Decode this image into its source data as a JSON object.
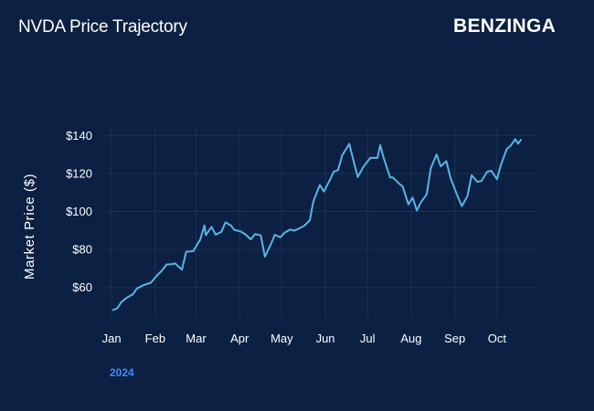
{
  "header": {
    "title": "NVDA Price Trajectory",
    "brand": "BENZINGA"
  },
  "colors": {
    "background": "#0b2042",
    "line": "#5ab4e8",
    "grid": "#1d3256",
    "year_label": "#3f8cff"
  },
  "chart_data": {
    "type": "line",
    "title": "NVDA Price Trajectory",
    "xlabel": "",
    "ylabel": "Market Price ($)",
    "x_ticks": [
      "Jan",
      "Feb",
      "Mar",
      "Apr",
      "May",
      "Jun",
      "Jul",
      "Aug",
      "Sep",
      "Oct"
    ],
    "x_year_label": "2024",
    "y_ticks": [
      "$60",
      "$80",
      "$100",
      "$120",
      "$140"
    ],
    "y_tick_values": [
      60,
      80,
      100,
      120,
      140
    ],
    "xlim": [
      "2023-12-28",
      "2024-10-31"
    ],
    "ylim": [
      44,
      144
    ],
    "grid": true,
    "legend": "none",
    "series": [
      {
        "x": [
          "2024-01-02",
          "2024-01-05",
          "2024-01-08",
          "2024-01-12",
          "2024-01-16",
          "2024-01-19",
          "2024-01-24",
          "2024-01-29",
          "2024-02-02",
          "2024-02-06",
          "2024-02-09",
          "2024-02-13",
          "2024-02-15",
          "2024-02-20",
          "2024-02-23",
          "2024-02-28",
          "2024-03-04",
          "2024-03-07",
          "2024-03-08",
          "2024-03-12",
          "2024-03-15",
          "2024-03-19",
          "2024-03-22",
          "2024-03-26",
          "2024-03-28",
          "2024-04-02",
          "2024-04-05",
          "2024-04-09",
          "2024-04-12",
          "2024-04-16",
          "2024-04-19",
          "2024-04-23",
          "2024-04-26",
          "2024-04-30",
          "2024-05-03",
          "2024-05-07",
          "2024-05-10",
          "2024-05-14",
          "2024-05-17",
          "2024-05-21",
          "2024-05-23",
          "2024-05-24",
          "2024-05-28",
          "2024-05-31",
          "2024-06-04",
          "2024-06-07",
          "2024-06-10",
          "2024-06-13",
          "2024-06-18",
          "2024-06-21",
          "2024-06-24",
          "2024-06-28",
          "2024-07-03",
          "2024-07-08",
          "2024-07-10",
          "2024-07-12",
          "2024-07-17",
          "2024-07-19",
          "2024-07-24",
          "2024-07-26",
          "2024-07-30",
          "2024-08-02",
          "2024-08-05",
          "2024-08-08",
          "2024-08-12",
          "2024-08-15",
          "2024-08-19",
          "2024-08-22",
          "2024-08-26",
          "2024-08-29",
          "2024-09-03",
          "2024-09-06",
          "2024-09-10",
          "2024-09-13",
          "2024-09-17",
          "2024-09-20",
          "2024-09-24",
          "2024-09-27",
          "2024-10-01",
          "2024-10-04",
          "2024-10-08",
          "2024-10-11",
          "2024-10-14",
          "2024-10-16",
          "2024-10-18"
        ],
        "values": [
          48.1,
          49.0,
          52.3,
          54.7,
          56.3,
          59.5,
          61.3,
          62.5,
          66.1,
          69.1,
          72.1,
          72.2,
          72.7,
          69.4,
          78.8,
          79.1,
          85.2,
          92.6,
          87.5,
          91.9,
          87.8,
          89.3,
          94.3,
          92.5,
          90.4,
          89.4,
          88.0,
          85.3,
          88.1,
          87.4,
          76.2,
          82.4,
          87.7,
          86.4,
          88.8,
          90.5,
          89.9,
          91.3,
          92.5,
          95.4,
          103.8,
          106.5,
          113.9,
          110.5,
          116.4,
          120.9,
          121.8,
          129.6,
          135.6,
          126.6,
          118.1,
          123.5,
          128.3,
          128.2,
          134.9,
          129.2,
          117.9,
          117.9,
          114.3,
          113.1,
          103.7,
          107.3,
          100.5,
          104.9,
          109.0,
          122.9,
          130.0,
          123.7,
          126.5,
          117.6,
          108.0,
          102.8,
          108.1,
          119.1,
          115.6,
          116.0,
          120.9,
          121.4,
          117.0,
          124.9,
          132.9,
          134.8,
          138.1,
          135.7,
          137.7
        ]
      }
    ]
  }
}
